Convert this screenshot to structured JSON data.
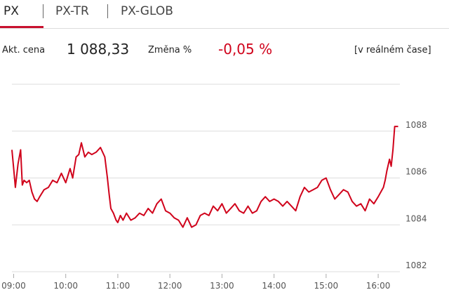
{
  "tabs": [
    "PX",
    "PX-TR",
    "PX-GLOB"
  ],
  "info": {
    "price_label": "Akt. cena",
    "price": "1 088,33",
    "change_label": "Změna %",
    "change": "-0,05 %",
    "mode": "[v reálném čase]"
  },
  "chart_data": {
    "type": "line",
    "x": [
      "08:58",
      "09:00",
      "09:02",
      "09:05",
      "09:08",
      "09:10",
      "09:12",
      "09:15",
      "09:18",
      "09:21",
      "09:24",
      "09:27",
      "09:30",
      "09:35",
      "09:40",
      "09:45",
      "09:50",
      "09:55",
      "10:00",
      "10:05",
      "10:08",
      "10:12",
      "10:15",
      "10:18",
      "10:22",
      "10:26",
      "10:30",
      "10:35",
      "10:40",
      "10:45",
      "10:48",
      "10:50",
      "10:52",
      "10:55",
      "10:58",
      "11:00",
      "11:03",
      "11:06",
      "11:10",
      "11:15",
      "11:20",
      "11:25",
      "11:30",
      "11:35",
      "11:40",
      "11:45",
      "11:50",
      "11:55",
      "12:00",
      "12:05",
      "12:10",
      "12:15",
      "12:20",
      "12:25",
      "12:30",
      "12:35",
      "12:40",
      "12:45",
      "12:50",
      "12:55",
      "13:00",
      "13:05",
      "13:10",
      "13:15",
      "13:20",
      "13:25",
      "13:30",
      "13:35",
      "13:40",
      "13:45",
      "13:50",
      "13:55",
      "14:00",
      "14:05",
      "14:10",
      "14:15",
      "14:20",
      "14:25",
      "14:30",
      "14:35",
      "14:40",
      "14:45",
      "14:50",
      "14:55",
      "15:00",
      "15:05",
      "15:10",
      "15:15",
      "15:20",
      "15:25",
      "15:30",
      "15:35",
      "15:40",
      "15:45",
      "15:50",
      "15:55",
      "16:00",
      "16:03",
      "16:06",
      "16:08",
      "16:10",
      "16:13",
      "16:15",
      "16:17",
      "16:19",
      "16:23"
    ],
    "series": [
      {
        "color": "#d0021b",
        "values": [
          1087.2,
          1086.4,
          1085.6,
          1086.6,
          1087.2,
          1085.7,
          1085.9,
          1085.8,
          1085.9,
          1085.4,
          1085.1,
          1085.0,
          1085.2,
          1085.5,
          1085.6,
          1085.9,
          1085.8,
          1086.2,
          1085.8,
          1086.4,
          1086.0,
          1086.9,
          1087.0,
          1087.5,
          1086.9,
          1087.1,
          1087.0,
          1087.1,
          1087.3,
          1086.9,
          1086.0,
          1085.3,
          1084.7,
          1084.5,
          1084.2,
          1084.1,
          1084.4,
          1084.2,
          1084.5,
          1084.2,
          1084.3,
          1084.5,
          1084.4,
          1084.7,
          1084.5,
          1084.9,
          1085.1,
          1084.6,
          1084.5,
          1084.3,
          1084.2,
          1083.9,
          1084.3,
          1083.9,
          1084.0,
          1084.4,
          1084.5,
          1084.4,
          1084.8,
          1084.6,
          1084.9,
          1084.5,
          1084.7,
          1084.9,
          1084.6,
          1084.5,
          1084.8,
          1084.5,
          1084.6,
          1085.0,
          1085.2,
          1085.0,
          1085.1,
          1085.0,
          1084.8,
          1085.0,
          1084.8,
          1084.6,
          1085.2,
          1085.6,
          1085.4,
          1085.5,
          1085.6,
          1085.9,
          1086.0,
          1085.5,
          1085.1,
          1085.3,
          1085.5,
          1085.4,
          1085.0,
          1084.8,
          1084.9,
          1084.6,
          1085.1,
          1084.9,
          1085.2,
          1085.4,
          1085.6,
          1085.9,
          1086.3,
          1086.8,
          1086.5,
          1087.2,
          1088.2,
          1088.2
        ]
      }
    ],
    "xlim": [
      "08:58",
      "16:25"
    ],
    "xticks": [
      "09:00",
      "10:00",
      "11:00",
      "12:00",
      "13:00",
      "14:00",
      "15:00",
      "16:00"
    ],
    "ylim": [
      1082,
      1090
    ],
    "yticks": [
      1082,
      1084,
      1086,
      1088
    ],
    "grid": true
  }
}
